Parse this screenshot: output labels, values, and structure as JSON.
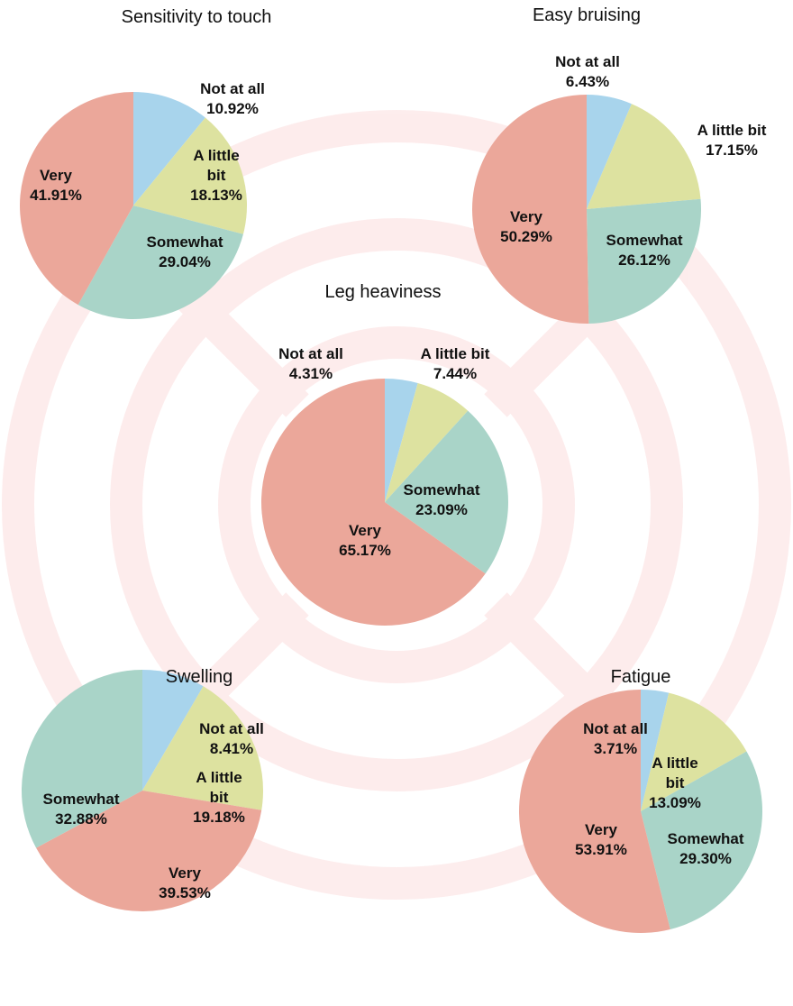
{
  "chart_data": [
    {
      "type": "pie",
      "title": "Sensitivity to touch",
      "categories": [
        "Not at all",
        "A little bit",
        "Somewhat",
        "Very"
      ],
      "values": [
        10.92,
        18.13,
        29.04,
        41.91
      ],
      "value_labels": [
        "10.92%",
        "18.13%",
        "29.04%",
        "41.91%"
      ],
      "colors": [
        "#a8d4ec",
        "#dde2a0",
        "#a9d4c8",
        "#eba79a"
      ]
    },
    {
      "type": "pie",
      "title": "Easy bruising",
      "categories": [
        "Not at all",
        "A little bit",
        "Somewhat",
        "Very"
      ],
      "values": [
        6.43,
        17.15,
        26.12,
        50.29
      ],
      "value_labels": [
        "6.43%",
        "17.15%",
        "26.12%",
        "50.29%"
      ],
      "colors": [
        "#a8d4ec",
        "#dde2a0",
        "#a9d4c8",
        "#eba79a"
      ]
    },
    {
      "type": "pie",
      "title": "Leg heaviness",
      "categories": [
        "Not at all",
        "A little bit",
        "Somewhat",
        "Very"
      ],
      "values": [
        4.31,
        7.44,
        23.09,
        65.17
      ],
      "value_labels": [
        "4.31%",
        "7.44%",
        "23.09%",
        "65.17%"
      ],
      "colors": [
        "#a8d4ec",
        "#dde2a0",
        "#a9d4c8",
        "#eba79a"
      ]
    },
    {
      "type": "pie",
      "title": "Swelling",
      "categories": [
        "Not at all",
        "A little bit",
        "Very",
        "Somewhat"
      ],
      "values": [
        8.41,
        19.18,
        39.53,
        32.88
      ],
      "value_labels": [
        "8.41%",
        "19.18%",
        "39.53%",
        "32.88%"
      ],
      "colors": [
        "#a8d4ec",
        "#dde2a0",
        "#eba79a",
        "#a9d4c8"
      ]
    },
    {
      "type": "pie",
      "title": "Fatigue",
      "categories": [
        "Not at all",
        "A little bit",
        "Somewhat",
        "Very"
      ],
      "values": [
        3.71,
        13.09,
        29.3,
        53.91
      ],
      "value_labels": [
        "3.71%",
        "13.09%",
        "29.30%",
        "53.91%"
      ],
      "colors": [
        "#a8d4ec",
        "#dde2a0",
        "#a9d4c8",
        "#eba79a"
      ]
    }
  ]
}
